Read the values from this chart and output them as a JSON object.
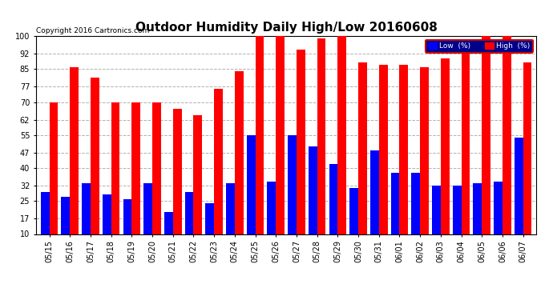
{
  "title": "Outdoor Humidity Daily High/Low 20160608",
  "copyright": "Copyright 2016 Cartronics.com",
  "categories": [
    "05/15",
    "05/16",
    "05/17",
    "05/18",
    "05/19",
    "05/20",
    "05/21",
    "05/22",
    "05/23",
    "05/24",
    "05/25",
    "05/26",
    "05/27",
    "05/28",
    "05/29",
    "05/30",
    "05/31",
    "06/01",
    "06/02",
    "06/03",
    "06/04",
    "06/05",
    "06/06",
    "06/07"
  ],
  "high_values": [
    70,
    86,
    81,
    70,
    70,
    70,
    67,
    64,
    76,
    84,
    100,
    100,
    94,
    99,
    100,
    88,
    87,
    87,
    86,
    90,
    93,
    100,
    100,
    88
  ],
  "low_values": [
    29,
    27,
    33,
    28,
    26,
    33,
    20,
    29,
    24,
    33,
    55,
    34,
    55,
    50,
    42,
    31,
    48,
    38,
    38,
    32,
    32,
    33,
    34,
    54
  ],
  "low_color": "#0000ff",
  "high_color": "#ff0000",
  "bg_color": "#ffffff",
  "plot_bg_color": "#ffffff",
  "yticks": [
    10,
    17,
    25,
    32,
    40,
    47,
    55,
    62,
    70,
    77,
    85,
    92,
    100
  ],
  "ylim": [
    10,
    100
  ],
  "grid_color": "#b0b0b0",
  "title_fontsize": 11,
  "tick_fontsize": 7,
  "bar_width": 0.42
}
